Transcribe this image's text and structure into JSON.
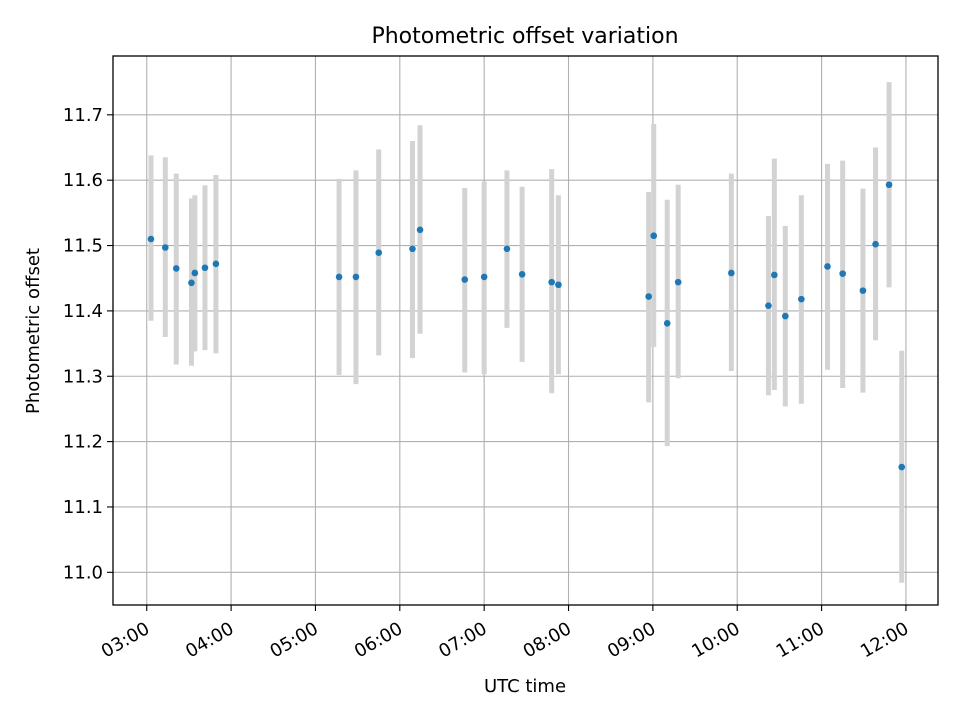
{
  "chart_data": {
    "type": "scatter",
    "title": "Photometric offset variation",
    "xlabel": "UTC time",
    "ylabel": "Photometric offset",
    "x_unit": "UTC hour",
    "xlim": [
      2.6,
      12.38
    ],
    "ylim": [
      10.95,
      11.79
    ],
    "grid": true,
    "x_ticks": [
      {
        "value": 3,
        "label": "03:00"
      },
      {
        "value": 4,
        "label": "04:00"
      },
      {
        "value": 5,
        "label": "05:00"
      },
      {
        "value": 6,
        "label": "06:00"
      },
      {
        "value": 7,
        "label": "07:00"
      },
      {
        "value": 8,
        "label": "08:00"
      },
      {
        "value": 9,
        "label": "09:00"
      },
      {
        "value": 10,
        "label": "10:00"
      },
      {
        "value": 11,
        "label": "11:00"
      },
      {
        "value": 12,
        "label": "12:00"
      }
    ],
    "y_ticks": [
      {
        "value": 11.0,
        "label": "11.0"
      },
      {
        "value": 11.1,
        "label": "11.1"
      },
      {
        "value": 11.2,
        "label": "11.2"
      },
      {
        "value": 11.3,
        "label": "11.3"
      },
      {
        "value": 11.4,
        "label": "11.4"
      },
      {
        "value": 11.5,
        "label": "11.5"
      },
      {
        "value": 11.6,
        "label": "11.6"
      },
      {
        "value": 11.7,
        "label": "11.7"
      }
    ],
    "point_color": "#1f77b4",
    "errorbar_color": "#d3d3d3",
    "points": [
      {
        "x": 3.05,
        "y": 11.51,
        "lo": 11.385,
        "hi": 11.638
      },
      {
        "x": 3.22,
        "y": 11.497,
        "lo": 11.36,
        "hi": 11.635
      },
      {
        "x": 3.35,
        "y": 11.465,
        "lo": 11.318,
        "hi": 11.61
      },
      {
        "x": 3.53,
        "y": 11.443,
        "lo": 11.316,
        "hi": 11.572
      },
      {
        "x": 3.57,
        "y": 11.458,
        "lo": 11.338,
        "hi": 11.577
      },
      {
        "x": 3.69,
        "y": 11.466,
        "lo": 11.34,
        "hi": 11.592
      },
      {
        "x": 3.82,
        "y": 11.472,
        "lo": 11.335,
        "hi": 11.608
      },
      {
        "x": 5.28,
        "y": 11.452,
        "lo": 11.302,
        "hi": 11.602
      },
      {
        "x": 5.48,
        "y": 11.452,
        "lo": 11.288,
        "hi": 11.615
      },
      {
        "x": 5.75,
        "y": 11.489,
        "lo": 11.332,
        "hi": 11.647
      },
      {
        "x": 6.15,
        "y": 11.495,
        "lo": 11.328,
        "hi": 11.66
      },
      {
        "x": 6.24,
        "y": 11.524,
        "lo": 11.365,
        "hi": 11.684
      },
      {
        "x": 6.77,
        "y": 11.448,
        "lo": 11.306,
        "hi": 11.588
      },
      {
        "x": 7.0,
        "y": 11.452,
        "lo": 11.303,
        "hi": 11.598
      },
      {
        "x": 7.27,
        "y": 11.495,
        "lo": 11.374,
        "hi": 11.615
      },
      {
        "x": 7.45,
        "y": 11.456,
        "lo": 11.322,
        "hi": 11.59
      },
      {
        "x": 7.8,
        "y": 11.444,
        "lo": 11.274,
        "hi": 11.617
      },
      {
        "x": 7.88,
        "y": 11.44,
        "lo": 11.303,
        "hi": 11.577
      },
      {
        "x": 8.95,
        "y": 11.422,
        "lo": 11.26,
        "hi": 11.582
      },
      {
        "x": 9.01,
        "y": 11.515,
        "lo": 11.345,
        "hi": 11.686
      },
      {
        "x": 9.17,
        "y": 11.381,
        "lo": 11.193,
        "hi": 11.57
      },
      {
        "x": 9.3,
        "y": 11.444,
        "lo": 11.297,
        "hi": 11.593
      },
      {
        "x": 9.93,
        "y": 11.458,
        "lo": 11.308,
        "hi": 11.61
      },
      {
        "x": 10.37,
        "y": 11.408,
        "lo": 11.271,
        "hi": 11.545
      },
      {
        "x": 10.44,
        "y": 11.455,
        "lo": 11.279,
        "hi": 11.633
      },
      {
        "x": 10.57,
        "y": 11.392,
        "lo": 11.254,
        "hi": 11.53
      },
      {
        "x": 10.76,
        "y": 11.418,
        "lo": 11.258,
        "hi": 11.577
      },
      {
        "x": 11.07,
        "y": 11.468,
        "lo": 11.31,
        "hi": 11.625
      },
      {
        "x": 11.25,
        "y": 11.457,
        "lo": 11.282,
        "hi": 11.63
      },
      {
        "x": 11.49,
        "y": 11.431,
        "lo": 11.275,
        "hi": 11.587
      },
      {
        "x": 11.64,
        "y": 11.502,
        "lo": 11.355,
        "hi": 11.65
      },
      {
        "x": 11.8,
        "y": 11.593,
        "lo": 11.436,
        "hi": 11.75
      },
      {
        "x": 11.95,
        "y": 11.161,
        "lo": 10.984,
        "hi": 11.339
      }
    ]
  }
}
